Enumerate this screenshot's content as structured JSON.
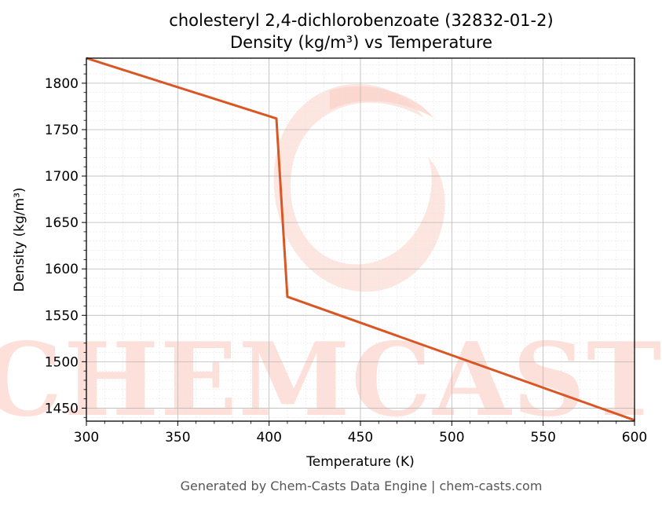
{
  "chart_data": {
    "type": "line",
    "title": "cholesteryl 2,4-dichlorobenzoate (32832-01-2)",
    "subtitle": "Density (kg/m³) vs Temperature",
    "xlabel": "Temperature (K)",
    "ylabel": "Density (kg/m³)",
    "xlim": [
      300,
      600
    ],
    "ylim": [
      1436,
      1827
    ],
    "xticks": [
      300,
      350,
      400,
      450,
      500,
      550,
      600
    ],
    "yticks": [
      1450,
      1500,
      1550,
      1600,
      1650,
      1700,
      1750,
      1800
    ],
    "grid": true,
    "series": [
      {
        "x": [
          300,
          404,
          410,
          600
        ],
        "y": [
          1827,
          1762,
          1570,
          1437
        ],
        "color": "#d95625"
      }
    ],
    "watermark": "CHEMCASTS"
  },
  "footer": "Generated by Chem-Casts Data Engine | chem-casts.com"
}
